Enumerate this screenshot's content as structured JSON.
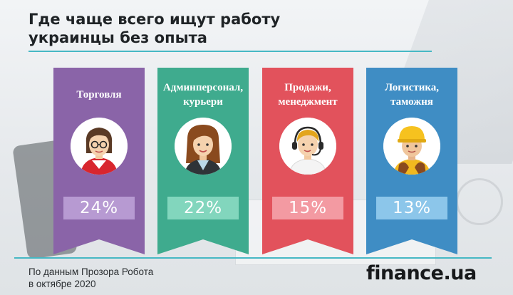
{
  "header": {
    "title": "Где чаще всего ищут работу украинцы без опыта"
  },
  "chart_data": {
    "type": "bar",
    "title": "Где чаще всего ищут работу украинцы без опыта",
    "unit": "%",
    "categories": [
      "Торговля",
      "Админперсонал, курьери",
      "Продажи, менеджмент",
      "Логистика, таможня"
    ],
    "values": [
      24,
      22,
      15,
      13
    ],
    "value_labels": [
      "24%",
      "22%",
      "15%",
      "13%"
    ],
    "colors": [
      "#8a64a8",
      "#3fab8e",
      "#e2525c",
      "#3f8dc4"
    ],
    "pill_colors": [
      "#b79ad2",
      "#82d6bd",
      "#f39aa2",
      "#8cc6ea"
    ]
  },
  "cards": [
    {
      "label": "Торговля",
      "icon": "saleswoman-avatar-icon"
    },
    {
      "label": "Админперсонал,\nкурьери",
      "icon": "office-woman-avatar-icon"
    },
    {
      "label": "Продажи,\nменеджмент",
      "icon": "call-center-avatar-icon"
    },
    {
      "label": "Логистика,\nтаможня",
      "icon": "worker-helmet-avatar-icon"
    }
  ],
  "footer": {
    "source": "По данным Прозора Робота\nв октябре 2020",
    "logo": "finance.ua"
  }
}
